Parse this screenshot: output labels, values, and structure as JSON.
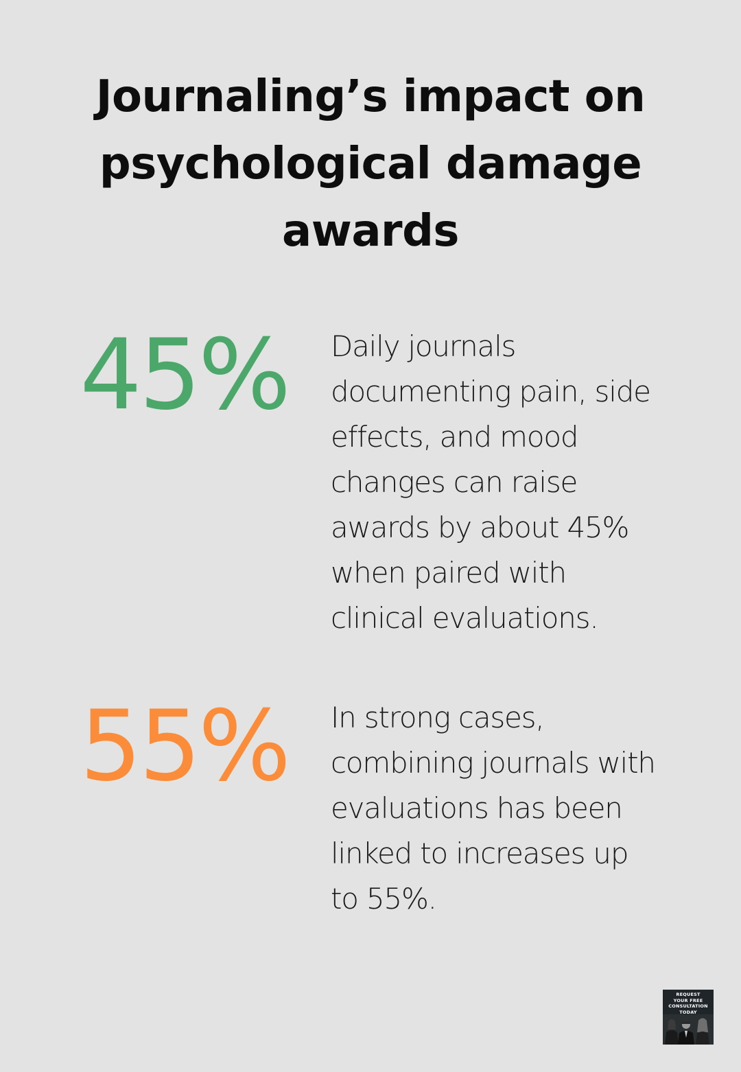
{
  "title": {
    "lines": [
      "Journaling’s impact on",
      "psychological damage",
      "awards"
    ]
  },
  "stats": [
    {
      "value": "45%",
      "color": "#4ca86a",
      "lines": [
        "Daily journals",
        "documenting pain, side",
        "effects, and mood",
        "changes can raise",
        "awards by about 45%",
        "when paired with",
        "clinical evaluations."
      ]
    },
    {
      "value": "55%",
      "color": "#fb8c3a",
      "lines": [
        "In strong cases,",
        "combining journals with",
        "evaluations has been",
        "linked to increases up",
        "to 55%."
      ]
    }
  ],
  "cta": {
    "lines": [
      "REQUEST",
      "YOUR FREE",
      "CONSULTATION",
      "TODAY"
    ]
  }
}
